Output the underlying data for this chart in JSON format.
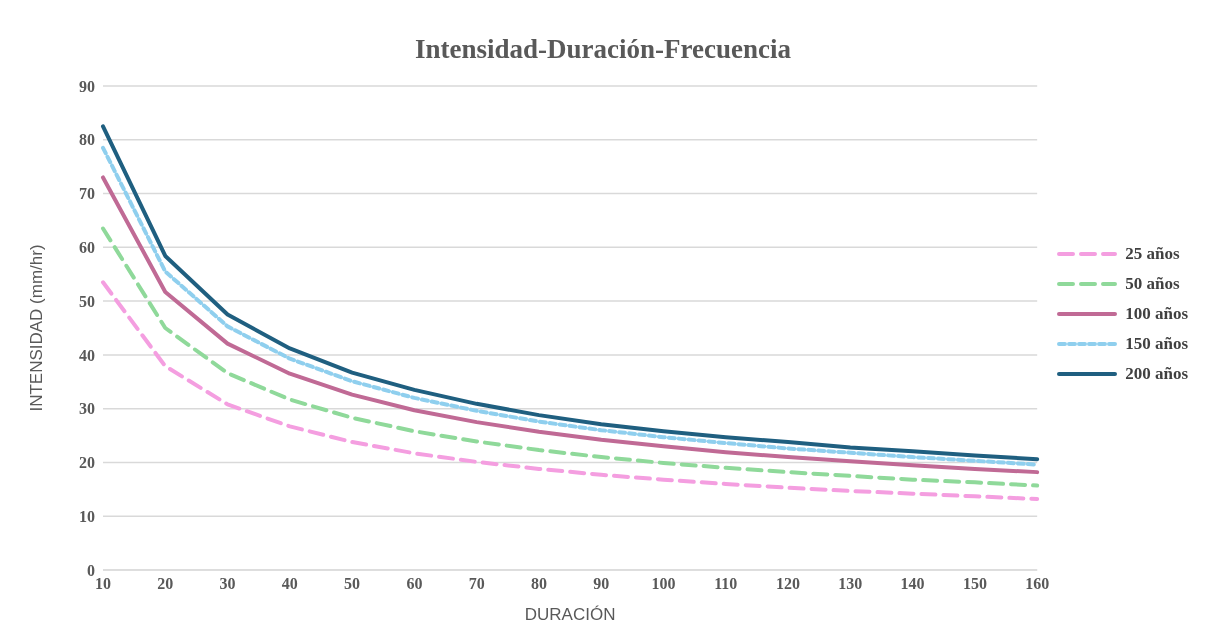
{
  "chart_data": {
    "type": "line",
    "title": "Intensidad-Duración-Frecuencia",
    "xlabel": "DURACIÓN",
    "ylabel": "INTENSIDAD (mm/hr)",
    "categories": [
      "10",
      "20",
      "30",
      "40",
      "50",
      "60",
      "70",
      "80",
      "90",
      "100",
      "110",
      "120",
      "130",
      "140",
      "150",
      "160"
    ],
    "ylim": [
      0,
      90
    ],
    "yticks": [
      0,
      10,
      20,
      30,
      40,
      50,
      60,
      70,
      80,
      90
    ],
    "grid": "y",
    "legend": "right",
    "marker": "none",
    "series": [
      {
        "name": "25 años",
        "color": "#f49ee0",
        "line_style": "dashed",
        "values": [
          53.5,
          37.9,
          30.8,
          26.7,
          23.8,
          21.7,
          20.1,
          18.8,
          17.7,
          16.8,
          16.0,
          15.3,
          14.7,
          14.2,
          13.7,
          13.2
        ]
      },
      {
        "name": "50 años",
        "color": "#8fd99a",
        "line_style": "dashed",
        "values": [
          63.5,
          45.0,
          36.6,
          31.7,
          28.3,
          25.8,
          23.9,
          22.3,
          21.0,
          19.9,
          19.0,
          18.2,
          17.5,
          16.8,
          16.3,
          15.7
        ]
      },
      {
        "name": "100 años",
        "color": "#c06a95",
        "line_style": "solid",
        "values": [
          73.0,
          51.7,
          42.1,
          36.5,
          32.6,
          29.7,
          27.5,
          25.7,
          24.2,
          23.0,
          21.9,
          21.0,
          20.2,
          19.5,
          18.8,
          18.2
        ]
      },
      {
        "name": "150 años",
        "color": "#8fcfee",
        "line_style": "dotted",
        "values": [
          78.5,
          55.5,
          45.3,
          39.3,
          35.1,
          32.0,
          29.6,
          27.6,
          26.0,
          24.7,
          23.6,
          22.6,
          21.8,
          21.0,
          20.3,
          19.6
        ]
      },
      {
        "name": "200 años",
        "color": "#1f5f80",
        "line_style": "solid",
        "values": [
          82.5,
          58.4,
          47.5,
          41.2,
          36.7,
          33.5,
          30.9,
          28.8,
          27.1,
          25.8,
          24.7,
          23.8,
          22.8,
          22.1,
          21.3,
          20.6
        ]
      }
    ]
  }
}
